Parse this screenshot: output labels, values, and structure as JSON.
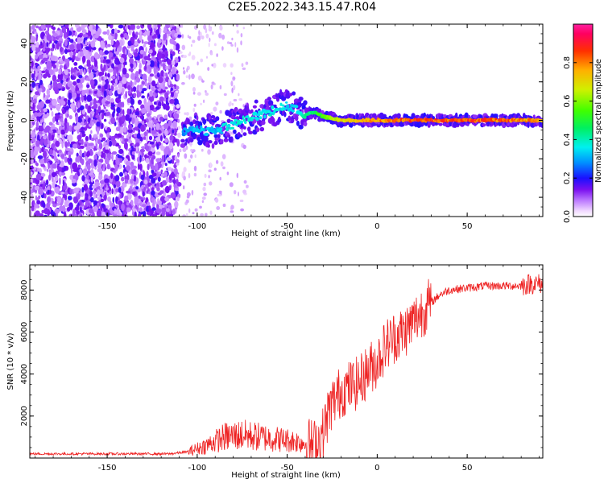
{
  "title": "C2E5.2022.343.15.47.R04",
  "chart_data": [
    {
      "type": "heatmap",
      "xlabel": "Height of straight line (km)",
      "ylabel": "Frequency (Hz)",
      "xlim": [
        -193,
        92
      ],
      "ylim": [
        -50,
        50
      ],
      "xticks": [
        -150,
        -100,
        -50,
        0,
        50
      ],
      "yticks": [
        -40,
        -20,
        0,
        20,
        40
      ],
      "colorbar": {
        "label": "Normalized spectral amplitude",
        "range": [
          0,
          1
        ],
        "ticks": [
          0.0,
          0.2,
          0.4,
          0.6,
          0.8
        ]
      },
      "ridge": {
        "x": [
          -108,
          -100,
          -90,
          -80,
          -70,
          -60,
          -52,
          -45,
          -40,
          -35,
          -30,
          -20,
          -10,
          0,
          10,
          30,
          50,
          70,
          92
        ],
        "freq": [
          -6,
          -5,
          -6,
          -2,
          1,
          4,
          8,
          6,
          3,
          4,
          2,
          0,
          0,
          0,
          0,
          0,
          0,
          0,
          0
        ],
        "amplitude": [
          0.3,
          0.35,
          0.35,
          0.4,
          0.4,
          0.4,
          0.38,
          0.35,
          0.45,
          0.5,
          0.6,
          0.75,
          0.8,
          0.85,
          0.9,
          0.9,
          0.9,
          0.9,
          0.8
        ]
      }
    },
    {
      "type": "line",
      "xlabel": "Height of straight line (km)",
      "ylabel": "SNR (10 * v/v)",
      "xlim": [
        -193,
        92
      ],
      "ylim": [
        0,
        9200
      ],
      "xticks": [
        -150,
        -100,
        -50,
        0,
        50
      ],
      "yticks": [
        2000,
        4000,
        6000,
        8000
      ],
      "color": "#ee2222",
      "series": [
        {
          "x": [
            -193,
            -170,
            -150,
            -130,
            -115,
            -105,
            -100,
            -95,
            -90,
            -85,
            -80,
            -75,
            -70,
            -65,
            -60,
            -55,
            -50,
            -45,
            -40,
            -35,
            -30,
            -27,
            -25,
            -20,
            -15,
            -10,
            -5,
            0,
            5,
            10,
            15,
            20,
            25,
            30,
            35,
            40,
            50,
            60,
            70,
            80,
            85,
            92
          ],
          "values": [
            200,
            200,
            200,
            200,
            200,
            300,
            450,
            600,
            800,
            1000,
            1050,
            1100,
            1050,
            1000,
            950,
            900,
            850,
            800,
            700,
            600,
            1200,
            2200,
            2600,
            3200,
            3400,
            3600,
            4200,
            4600,
            5400,
            5800,
            6000,
            6500,
            7000,
            7400,
            7800,
            8000,
            8100,
            8200,
            8200,
            8200,
            8300,
            8300
          ]
        }
      ]
    }
  ]
}
